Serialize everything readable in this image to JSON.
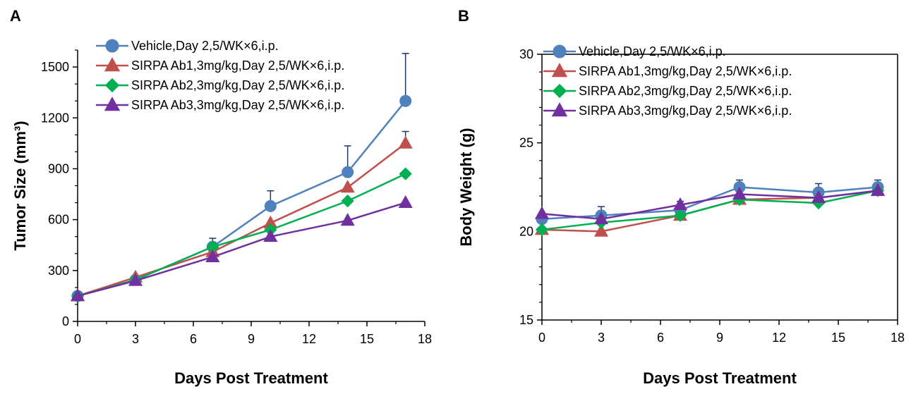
{
  "chart_data": [
    {
      "panel": "A",
      "type": "line",
      "xlabel": "Days Post Treatment",
      "ylabel": "Tumor Size (mm³)",
      "xlim": [
        0,
        18
      ],
      "ylim": [
        0,
        1600
      ],
      "xticks": [
        0,
        3,
        6,
        9,
        12,
        15,
        18
      ],
      "yticks": [
        0,
        300,
        600,
        900,
        1200,
        1500
      ],
      "legend_position": "top-left",
      "grid": false,
      "x": [
        0,
        3,
        7,
        10,
        14,
        17
      ],
      "series": [
        {
          "name": "Vehicle,Day 2,5/WK×6,i.p.",
          "color": "#4F81BD",
          "marker": "circle",
          "values": [
            150,
            245,
            440,
            680,
            880,
            1300
          ],
          "error": [
            0,
            10,
            50,
            90,
            155,
            280
          ]
        },
        {
          "name": "SIRPA Ab1,3mg/kg,Day 2,5/WK×6,i.p.",
          "color": "#C0504D",
          "marker": "triangle",
          "values": [
            150,
            260,
            410,
            580,
            790,
            1050
          ],
          "error": [
            0,
            0,
            0,
            0,
            0,
            70
          ]
        },
        {
          "name": "SIRPA Ab2,3mg/kg,Day 2,5/WK×6,i.p.",
          "color": "#00B050",
          "marker": "diamond",
          "values": [
            150,
            245,
            440,
            540,
            710,
            870
          ],
          "error": [
            0,
            0,
            0,
            0,
            0,
            0
          ]
        },
        {
          "name": "SIRPA Ab3,3mg/kg,Day 2,5/WK×6,i.p.",
          "color": "#7030A0",
          "marker": "triangle",
          "values": [
            150,
            240,
            380,
            500,
            595,
            700
          ],
          "error": [
            0,
            0,
            0,
            0,
            0,
            0
          ]
        }
      ]
    },
    {
      "panel": "B",
      "type": "line",
      "xlabel": "Days Post Treatment",
      "ylabel": "Body Weight (g)",
      "xlim": [
        0,
        18
      ],
      "ylim": [
        15,
        30
      ],
      "xticks": [
        0,
        3,
        6,
        9,
        12,
        15,
        18
      ],
      "yticks": [
        15,
        20,
        25,
        30
      ],
      "legend_position": "top-left",
      "grid": false,
      "x": [
        0,
        3,
        7,
        10,
        14,
        17
      ],
      "series": [
        {
          "name": "Vehicle,Day 2,5/WK×6,i.p.",
          "color": "#4F81BD",
          "marker": "circle",
          "values": [
            20.7,
            20.9,
            21.2,
            22.5,
            22.2,
            22.5
          ],
          "error": [
            0,
            0.5,
            0.5,
            0.4,
            0.5,
            0.4
          ]
        },
        {
          "name": "SIRPA Ab1,3mg/kg,Day 2,5/WK×6,i.p.",
          "color": "#C0504D",
          "marker": "triangle",
          "values": [
            20.1,
            20.0,
            20.9,
            21.8,
            21.9,
            22.3
          ],
          "error": [
            0,
            0,
            0,
            0,
            0,
            0
          ]
        },
        {
          "name": "SIRPA Ab2,3mg/kg,Day 2,5/WK×6,i.p.",
          "color": "#00B050",
          "marker": "diamond",
          "values": [
            20.1,
            20.5,
            20.9,
            21.8,
            21.6,
            22.3
          ],
          "error": [
            0,
            0,
            0,
            0,
            0,
            0
          ]
        },
        {
          "name": "SIRPA Ab3,3mg/kg,Day 2,5/WK×6,i.p.",
          "color": "#7030A0",
          "marker": "triangle",
          "values": [
            21.0,
            20.7,
            21.5,
            22.1,
            21.9,
            22.3
          ],
          "error": [
            0,
            0,
            0,
            0,
            0,
            0
          ]
        }
      ]
    }
  ]
}
